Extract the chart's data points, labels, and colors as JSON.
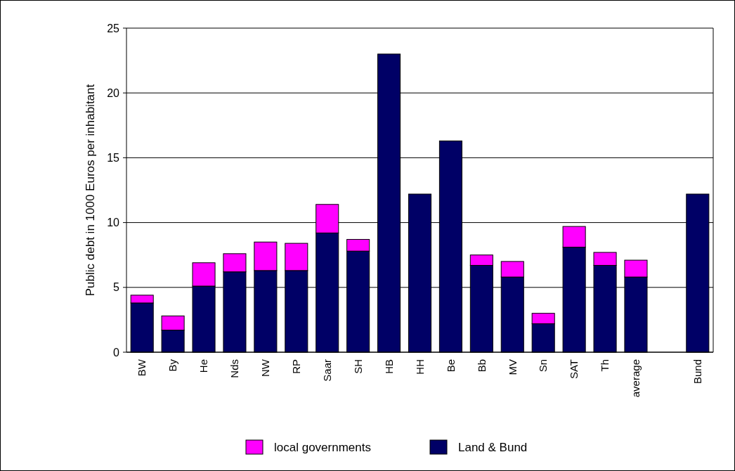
{
  "chart_data": {
    "type": "bar",
    "stacked": true,
    "ylabel": "Public debt in 1000 Euros per inhabitant",
    "categories": [
      "BW",
      "By",
      "He",
      "Nds",
      "NW",
      "RP",
      "Saar",
      "SH",
      "HB",
      "HH",
      "Be",
      "Bb",
      "MV",
      "Sn",
      "SAT",
      "Th",
      "average",
      null,
      "Bund"
    ],
    "series": [
      {
        "name": "Land & Bund",
        "color": "#000066",
        "values": [
          3.8,
          1.7,
          5.1,
          6.2,
          6.3,
          6.3,
          9.2,
          7.8,
          23.0,
          12.2,
          16.3,
          6.7,
          5.8,
          2.2,
          8.1,
          6.7,
          5.8,
          null,
          12.2
        ]
      },
      {
        "name": "local governments",
        "color": "#ff00ff",
        "values": [
          0.6,
          1.1,
          1.8,
          1.4,
          2.2,
          2.1,
          2.2,
          0.9,
          null,
          null,
          null,
          0.8,
          1.2,
          0.8,
          1.6,
          1.0,
          1.3,
          null,
          null
        ]
      }
    ],
    "ylim": [
      0,
      25
    ],
    "yticks": [
      0,
      5,
      10,
      15,
      20,
      25
    ],
    "grid": "y",
    "legend": "bottom"
  }
}
